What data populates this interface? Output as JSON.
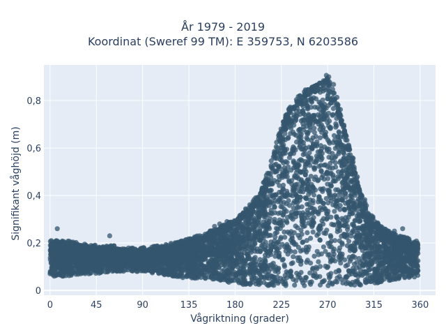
{
  "chart_data": {
    "type": "scatter",
    "title_line1": "År 1979 - 2019",
    "title_line2": "Koordinat (Sweref 99 TM): E 359753, N 6203586",
    "xlabel": "Vågriktning (grader)",
    "ylabel": "Signifikant våghöjd (m)",
    "xlim": [
      -6,
      375
    ],
    "ylim": [
      -0.02,
      0.95
    ],
    "xticks": [
      0,
      45,
      90,
      135,
      180,
      225,
      270,
      315,
      360
    ],
    "yticks": [
      {
        "value": 0,
        "label": "0"
      },
      {
        "value": 0.2,
        "label": "0,2"
      },
      {
        "value": 0.4,
        "label": "0,4"
      },
      {
        "value": 0.6,
        "label": "0,6"
      },
      {
        "value": 0.8,
        "label": "0,8"
      }
    ],
    "grid": true,
    "marker_color": "#34566e",
    "plot_background": "#e5ecf6",
    "envelope": {
      "x": [
        0,
        10,
        20,
        30,
        45,
        60,
        75,
        90,
        105,
        120,
        135,
        150,
        165,
        180,
        190,
        200,
        210,
        220,
        225,
        230,
        240,
        250,
        260,
        265,
        270,
        275,
        280,
        290,
        300,
        310,
        320,
        330,
        340,
        350,
        358
      ],
      "y_low": [
        0.06,
        0.06,
        0.06,
        0.07,
        0.07,
        0.08,
        0.08,
        0.08,
        0.07,
        0.06,
        0.05,
        0.05,
        0.04,
        0.03,
        0.02,
        0.02,
        0.02,
        0.02,
        0.02,
        0.02,
        0.02,
        0.02,
        0.02,
        0.02,
        0.02,
        0.02,
        0.02,
        0.02,
        0.02,
        0.03,
        0.03,
        0.04,
        0.05,
        0.05,
        0.06
      ],
      "y_high": [
        0.2,
        0.2,
        0.2,
        0.19,
        0.18,
        0.18,
        0.17,
        0.17,
        0.18,
        0.19,
        0.21,
        0.23,
        0.26,
        0.29,
        0.33,
        0.38,
        0.46,
        0.6,
        0.68,
        0.74,
        0.8,
        0.84,
        0.86,
        0.88,
        0.9,
        0.86,
        0.78,
        0.62,
        0.44,
        0.32,
        0.27,
        0.24,
        0.22,
        0.21,
        0.2
      ]
    },
    "outliers": [
      {
        "x": 7,
        "y": 0.26
      },
      {
        "x": 58,
        "y": 0.23
      },
      {
        "x": 165,
        "y": 0.28
      },
      {
        "x": 160,
        "y": 0.27
      },
      {
        "x": 172,
        "y": 0.29
      },
      {
        "x": 335,
        "y": 0.25
      },
      {
        "x": 343,
        "y": 0.26
      }
    ]
  }
}
